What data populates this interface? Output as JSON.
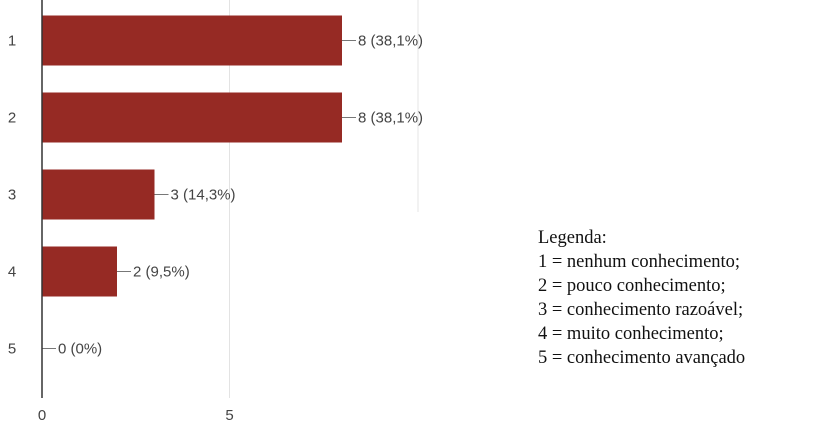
{
  "chart_data": {
    "type": "bar",
    "orientation": "horizontal",
    "categories": [
      "1",
      "2",
      "3",
      "4",
      "5"
    ],
    "values": [
      8,
      8,
      3,
      2,
      0
    ],
    "data_labels": [
      "8 (38,1%)",
      "8 (38,1%)",
      "3 (14,3%)",
      "2 (9,5%)",
      "0 (0%)"
    ],
    "x_ticks": [
      "0",
      "5"
    ],
    "xlim": [
      0,
      10
    ],
    "grid": true,
    "bar_color": "#962a24"
  },
  "legend": {
    "title": "Legenda:",
    "items": [
      "1 = nenhum conhecimento;",
      "2 = pouco conhecimento;",
      "3 = conhecimento razoável;",
      "4 = muito conhecimento;",
      "5 = conhecimento avançado"
    ]
  }
}
